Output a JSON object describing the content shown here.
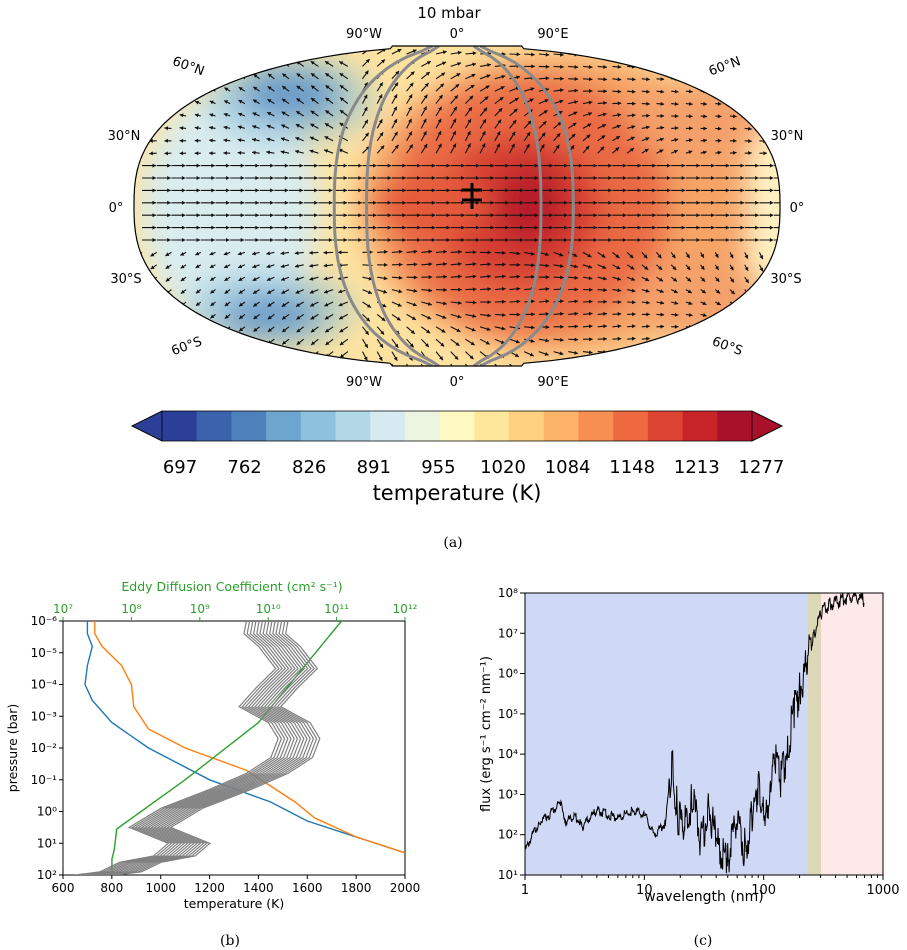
{
  "panel_a": {
    "title": "10 mbar",
    "top_lon_labels": [
      "90°W",
      "0°",
      "90°E"
    ],
    "bottom_lon_labels": [
      "90°W",
      "0°",
      "90°E"
    ],
    "left_lat_labels": [
      "60°N",
      "30°N",
      "0°",
      "30°S",
      "60°S"
    ],
    "right_lat_labels": [
      "60°N",
      "30°N",
      "0°",
      "30°S",
      "60°S"
    ],
    "colorbar_ticks": [
      "697",
      "762",
      "826",
      "891",
      "955",
      "1020",
      "1084",
      "1148",
      "1213",
      "1277"
    ],
    "colorbar_label": "temperature (K)",
    "colorbar_colors": [
      "#2b3f98",
      "#3a62ad",
      "#4e80bb",
      "#6ea5ce",
      "#8ec1dc",
      "#b2d8e8",
      "#d5ebf1",
      "#ebf5df",
      "#fffac2",
      "#fee79a",
      "#fed080",
      "#fdb368",
      "#f88f52",
      "#ee6840",
      "#dd4431",
      "#c72529",
      "#a9102a"
    ],
    "caption": "(a)"
  },
  "panel_b": {
    "caption": "(b)",
    "top_axis_label": "Eddy Diffusion Coefficient (cm² s⁻¹)",
    "top_ticks": [
      "10⁷",
      "10⁸",
      "10⁹",
      "10¹⁰",
      "10¹¹",
      "10¹²"
    ],
    "xlabel": "temperature (K)",
    "ylabel": "pressure (bar)",
    "x_ticks": [
      "600",
      "800",
      "1000",
      "1200",
      "1400",
      "1600",
      "1800",
      "2000"
    ],
    "y_ticks": [
      "10⁻⁶",
      "10⁻⁵",
      "10⁻⁴",
      "10⁻³",
      "10⁻²",
      "10⁻¹",
      "10⁰",
      "10¹",
      "10²"
    ],
    "colors": {
      "blue": "#1f77b4",
      "orange": "#ff7f0e",
      "green": "#2ca02c",
      "gray": "#808080"
    }
  },
  "panel_c": {
    "caption": "(c)",
    "xlabel": "wavelength (nm)",
    "ylabel": "flux (erg s⁻¹ cm⁻² nm⁻¹)",
    "x_ticks": [
      "1",
      "10",
      "100",
      "1000"
    ],
    "y_ticks": [
      "10¹",
      "10²",
      "10³",
      "10⁴",
      "10⁵",
      "10⁶",
      "10⁷",
      "10⁸"
    ],
    "band_colors": [
      "#cfd8f5",
      "#dcd8b8",
      "#fde8ea"
    ]
  },
  "chart_data": [
    {
      "type": "heatmap",
      "title": "10 mbar",
      "colorbar": {
        "label": "temperature (K)",
        "ticks": [
          697,
          762,
          826,
          891,
          955,
          1020,
          1084,
          1148,
          1213,
          1277
        ]
      },
      "hot_spot": {
        "lon": 30,
        "lat": 0,
        "temperature": 1290
      },
      "cold_spots": [
        {
          "lon": -130,
          "lat": 55,
          "temperature": 700
        },
        {
          "lon": -130,
          "lat": -55,
          "temperature": 710
        }
      ]
    },
    {
      "type": "line",
      "xlabel": "temperature (K)",
      "ylabel": "pressure (bar)",
      "xlim": [
        600,
        2000
      ],
      "ylim_log10": [
        2,
        -6
      ],
      "series": [
        {
          "color": "blue",
          "points": [
            [
              700,
              -6
            ],
            [
              700,
              -5.6
            ],
            [
              720,
              -5.2
            ],
            [
              700,
              -4.6
            ],
            [
              690,
              -4.0
            ],
            [
              720,
              -3.5
            ],
            [
              800,
              -2.8
            ],
            [
              950,
              -2.0
            ],
            [
              1200,
              -1.0
            ],
            [
              1450,
              -0.3
            ],
            [
              1600,
              0.3
            ],
            [
              1800,
              0.8
            ],
            [
              2000,
              1.3
            ]
          ]
        },
        {
          "color": "orange",
          "points": [
            [
              730,
              -6
            ],
            [
              730,
              -5.6
            ],
            [
              760,
              -5.2
            ],
            [
              840,
              -4.6
            ],
            [
              880,
              -4.0
            ],
            [
              890,
              -3.3
            ],
            [
              950,
              -2.6
            ],
            [
              1100,
              -2.0
            ],
            [
              1350,
              -1.3
            ],
            [
              1550,
              -0.3
            ],
            [
              1630,
              0.2
            ],
            [
              1800,
              0.8
            ],
            [
              2000,
              1.3
            ]
          ]
        },
        {
          "color": "green",
          "points": [
            [
              800,
              2.0
            ],
            [
              800,
              1.5
            ],
            [
              810,
              1.2
            ],
            [
              820,
              0.55
            ],
            [
              1100,
              -1.0
            ],
            [
              1400,
              -2.8
            ],
            [
              1740,
              -6
            ]
          ]
        },
        {
          "color": "gray",
          "points": [
            [
              1400,
              -6
            ],
            [
              1390,
              -5.6
            ],
            [
              1450,
              -5.2
            ],
            [
              1520,
              -4.5
            ],
            [
              1440,
              -3.9
            ],
            [
              1370,
              -3.3
            ],
            [
              1490,
              -2.8
            ],
            [
              1530,
              -2.3
            ],
            [
              1500,
              -1.7
            ],
            [
              1400,
              -1.2
            ],
            [
              1250,
              -0.7
            ],
            [
              1050,
              -0.1
            ],
            [
              920,
              0.5
            ],
            [
              1080,
              1.0
            ],
            [
              1020,
              1.4
            ],
            [
              880,
              1.6
            ],
            [
              800,
              1.9
            ],
            [
              700,
              2.0
            ]
          ]
        }
      ]
    },
    {
      "type": "line",
      "xlabel": "wavelength (nm)",
      "ylabel": "flux (erg s⁻¹ cm⁻² nm⁻¹)",
      "xlim_log10": [
        0,
        3
      ],
      "ylim_log10": [
        1,
        8
      ],
      "bands": [
        {
          "x": [
            1,
            230
          ]
        },
        {
          "x": [
            230,
            300
          ]
        },
        {
          "x": [
            300,
            1000
          ]
        }
      ],
      "series": [
        {
          "color": "#000000",
          "points": [
            [
              1,
              1.6
            ],
            [
              1.3,
              2.3
            ],
            [
              1.6,
              2.5
            ],
            [
              2.0,
              2.8
            ],
            [
              2.2,
              2.3
            ],
            [
              2.6,
              2.5
            ],
            [
              3,
              2.2
            ],
            [
              4,
              2.6
            ],
            [
              5,
              2.5
            ],
            [
              6,
              2.4
            ],
            [
              8,
              2.6
            ],
            [
              10,
              2.5
            ],
            [
              12,
              2.0
            ],
            [
              15,
              2.3
            ],
            [
              17,
              3.8
            ],
            [
              19,
              2.5
            ],
            [
              22,
              2.2
            ],
            [
              25,
              2.8
            ],
            [
              30,
              1.9
            ],
            [
              35,
              2.7
            ],
            [
              40,
              1.8
            ],
            [
              50,
              1.4
            ],
            [
              60,
              2.5
            ],
            [
              70,
              1.6
            ],
            [
              80,
              2.4
            ],
            [
              90,
              3.3
            ],
            [
              100,
              2.8
            ],
            [
              110,
              2.2
            ],
            [
              120,
              4.2
            ],
            [
              140,
              3.3
            ],
            [
              160,
              4.3
            ],
            [
              180,
              5.0
            ],
            [
              200,
              5.6
            ],
            [
              230,
              6.2
            ],
            [
              260,
              6.9
            ],
            [
              300,
              7.5
            ],
            [
              350,
              7.7
            ],
            [
              420,
              7.8
            ],
            [
              500,
              7.9
            ],
            [
              600,
              7.9
            ],
            [
              700,
              7.8
            ]
          ]
        }
      ]
    }
  ]
}
